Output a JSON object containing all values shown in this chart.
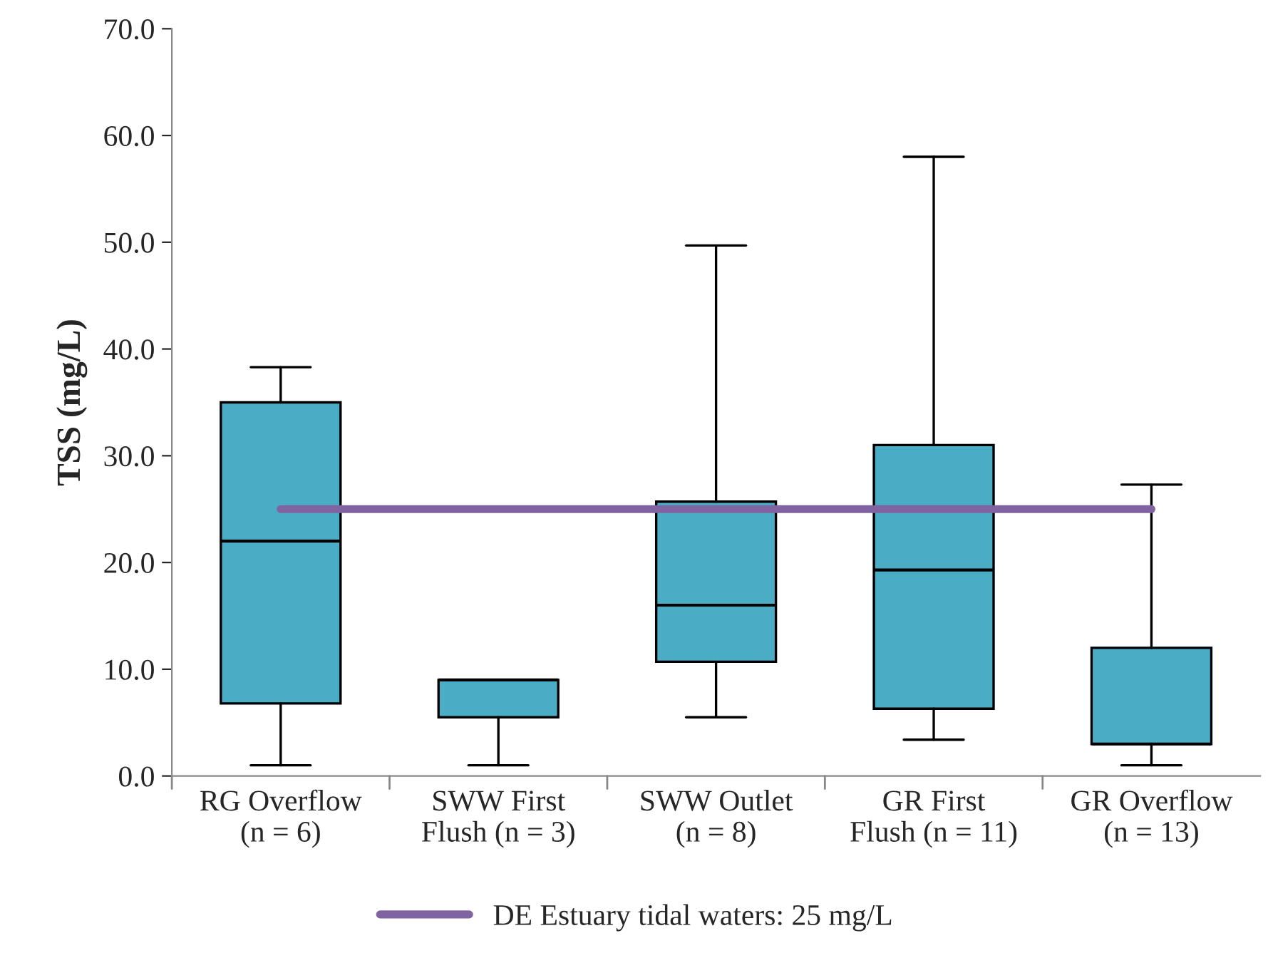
{
  "chart_data": {
    "type": "box",
    "ylabel": "TSS (mg/L)",
    "categories": [
      "RG Overflow\n(n = 6)",
      "SWW First\nFlush (n = 3)",
      "SWW Outlet\n(n = 8)",
      "GR First\nFlush (n = 11)",
      "GR Overflow\n(n = 13)"
    ],
    "series": [
      {
        "color": "#4bacc6",
        "boxes": [
          {
            "low": 1.0,
            "q1": 6.8,
            "median": 22.0,
            "q3": 35.0,
            "high": 38.3
          },
          {
            "low": 1.0,
            "q1": 5.5,
            "median": 9.0,
            "q3": 9.0,
            "high": 9.0
          },
          {
            "low": 5.5,
            "q1": 10.7,
            "median": 16.0,
            "q3": 25.7,
            "high": 49.7
          },
          {
            "low": 3.4,
            "q1": 6.3,
            "median": 19.3,
            "q3": 31.0,
            "high": 58.0
          },
          {
            "low": 1.0,
            "q1": 3.0,
            "median": 3.0,
            "q3": 12.0,
            "high": 27.3
          }
        ]
      },
      {
        "type": "line",
        "name": "DE Estuary tidal waters: 25 mg/L",
        "color": "#8064a2",
        "values": [
          25,
          25,
          25,
          25,
          25
        ]
      }
    ],
    "ylim": [
      0,
      70
    ],
    "yticks": [
      {
        "value": 0,
        "label": "0.0"
      },
      {
        "value": 10,
        "label": "10.0"
      },
      {
        "value": 20,
        "label": "20.0"
      },
      {
        "value": 30,
        "label": "30.0"
      },
      {
        "value": 40,
        "label": "40.0"
      },
      {
        "value": 50,
        "label": "50.0"
      },
      {
        "value": 60,
        "label": "60.0"
      },
      {
        "value": 70,
        "label": "70.0"
      }
    ],
    "grid": false,
    "legend": "bottom",
    "marker": "none",
    "line_style": "solid"
  }
}
